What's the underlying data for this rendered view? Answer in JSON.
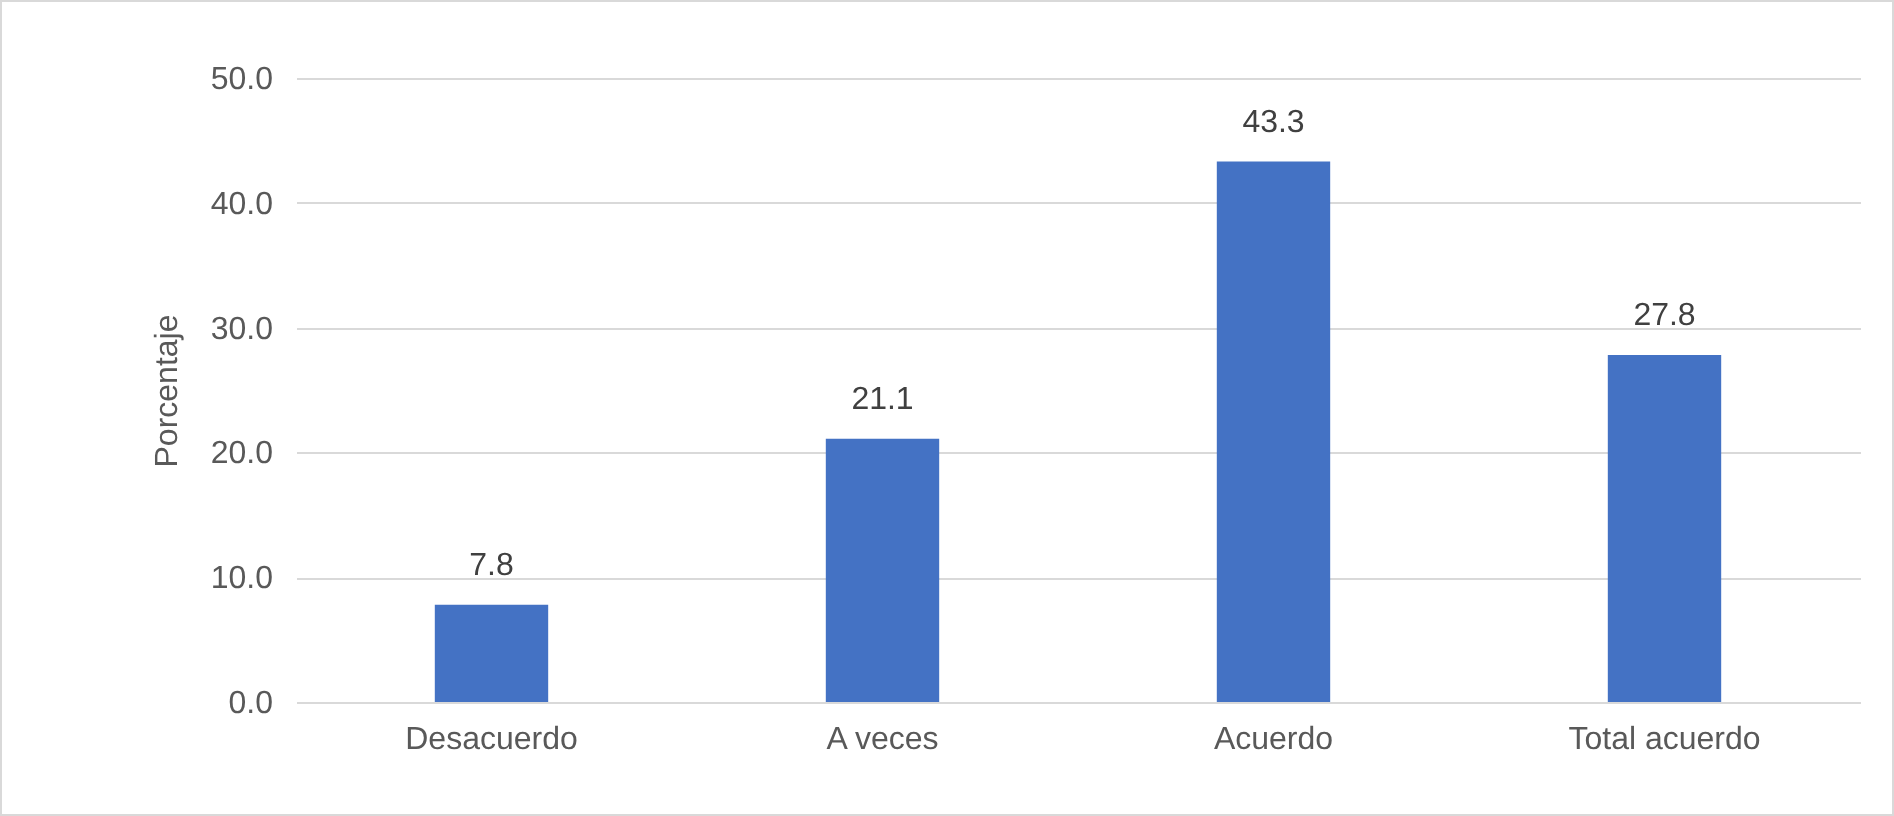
{
  "chart_data": {
    "type": "bar",
    "ylabel": "Porcentaje",
    "categories": [
      "Desacuerdo",
      "A veces",
      "Acuerdo",
      "Total acuerdo"
    ],
    "values": [
      7.8,
      21.1,
      43.3,
      27.8
    ],
    "color": "#4472c4",
    "ylim": [
      0,
      50
    ],
    "yticks": [
      {
        "value": 0,
        "label": "0.0"
      },
      {
        "value": 10,
        "label": "10.0"
      },
      {
        "value": 20,
        "label": "20.0"
      },
      {
        "value": 30,
        "label": "30.0"
      },
      {
        "value": 40,
        "label": "40.0"
      },
      {
        "value": 50,
        "label": "50.0"
      }
    ],
    "grid": "y",
    "data_labels": true
  }
}
